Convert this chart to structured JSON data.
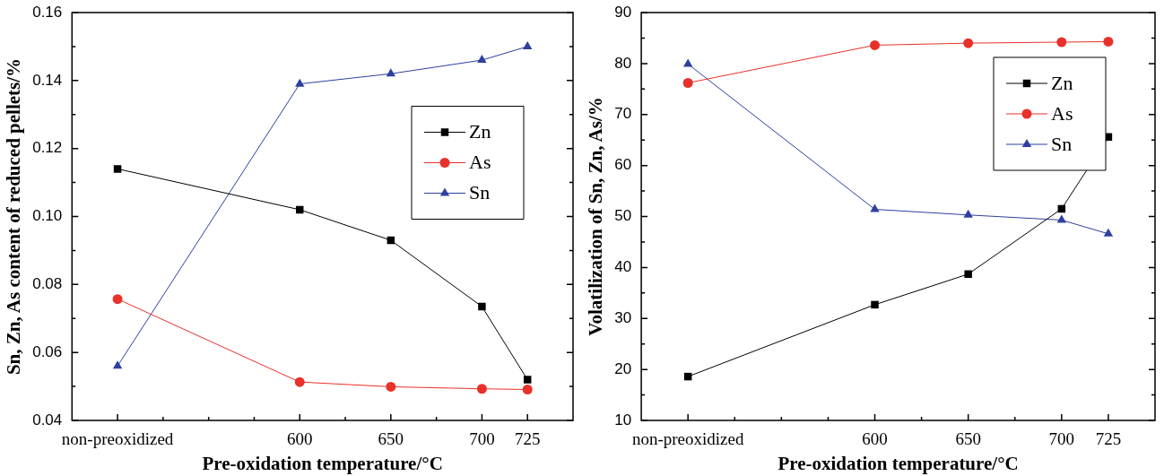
{
  "chart_data": [
    {
      "type": "line",
      "xlabel": "Pre-oxidation temperature/°C",
      "ylabel": "Sn, Zn, As content of reduced pellets/%",
      "x": [
        500,
        600,
        650,
        700,
        725
      ],
      "xlim": [
        475,
        750
      ],
      "xticks": [
        {
          "value": 500,
          "label": "non-preoxidized"
        },
        {
          "value": 525,
          "label": null
        },
        {
          "value": 550,
          "label": null
        },
        {
          "value": 575,
          "label": null
        },
        600,
        {
          "value": 625,
          "label": null
        },
        650,
        {
          "value": 675,
          "label": null
        },
        700,
        725
      ],
      "ylim": [
        0.04,
        0.16
      ],
      "yticks": [
        {
          "value": 0.04,
          "label": "0.04"
        },
        {
          "value": 0.05,
          "label": null
        },
        {
          "value": 0.06,
          "label": "0.06"
        },
        {
          "value": 0.07,
          "label": null
        },
        {
          "value": 0.08,
          "label": "0.08"
        },
        {
          "value": 0.09,
          "label": null
        },
        {
          "value": 0.1,
          "label": "0.10"
        },
        {
          "value": 0.11,
          "label": null
        },
        {
          "value": 0.12,
          "label": "0.12"
        },
        {
          "value": 0.13,
          "label": null
        },
        {
          "value": 0.14,
          "label": "0.14"
        },
        {
          "value": 0.15,
          "label": null
        },
        {
          "value": 0.16,
          "label": "0.16"
        }
      ],
      "legend": "right",
      "grid": false,
      "line_style": "solid",
      "series": [
        {
          "name": "Zn",
          "color": "#000000",
          "marker": "square",
          "values": [
            0.114,
            0.102,
            0.093,
            0.0735,
            0.052
          ]
        },
        {
          "name": "As",
          "color": "#e8312a",
          "marker": "circle",
          "values": [
            0.0757,
            0.0513,
            0.0499,
            0.0493,
            0.0491
          ]
        },
        {
          "name": "Sn",
          "color": "#2e3f9e",
          "marker": "triangle",
          "values": [
            0.056,
            0.139,
            0.142,
            0.146,
            0.15
          ]
        }
      ]
    },
    {
      "type": "line",
      "xlabel": "Pre-oxidation temperature/°C",
      "ylabel": "Volatilization of Sn, Zn, As/%",
      "x": [
        500,
        600,
        650,
        700,
        725
      ],
      "xlim": [
        475,
        750
      ],
      "xticks": [
        {
          "value": 500,
          "label": "non-preoxidized"
        },
        {
          "value": 525,
          "label": null
        },
        {
          "value": 550,
          "label": null
        },
        {
          "value": 575,
          "label": null
        },
        600,
        {
          "value": 625,
          "label": null
        },
        650,
        {
          "value": 675,
          "label": null
        },
        700,
        725
      ],
      "ylim": [
        10,
        90
      ],
      "yticks": [
        10,
        {
          "value": 15,
          "label": null
        },
        20,
        {
          "value": 25,
          "label": null
        },
        30,
        {
          "value": 35,
          "label": null
        },
        40,
        {
          "value": 45,
          "label": null
        },
        50,
        {
          "value": 55,
          "label": null
        },
        60,
        {
          "value": 65,
          "label": null
        },
        70,
        {
          "value": 75,
          "label": null
        },
        80,
        {
          "value": 85,
          "label": null
        },
        90
      ],
      "legend": "top right",
      "grid": false,
      "line_style": "solid",
      "series": [
        {
          "name": "Zn",
          "color": "#000000",
          "marker": "square",
          "values": [
            18.6,
            32.7,
            38.7,
            51.5,
            65.6
          ]
        },
        {
          "name": "As",
          "color": "#e8312a",
          "marker": "circle",
          "values": [
            76.2,
            83.6,
            84.0,
            84.2,
            84.3
          ]
        },
        {
          "name": "Sn",
          "color": "#2e3f9e",
          "marker": "triangle",
          "values": [
            79.9,
            51.4,
            50.3,
            49.3,
            46.6
          ]
        }
      ]
    }
  ]
}
